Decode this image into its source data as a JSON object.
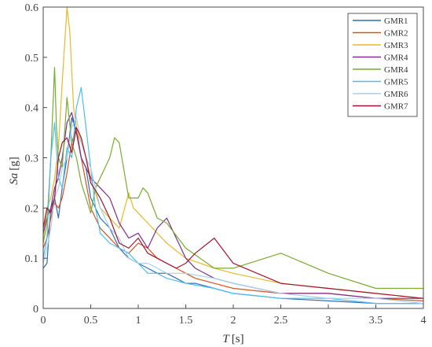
{
  "chart_data": {
    "type": "line",
    "xlabel_prefix": "T",
    "xlabel_unit": "[s]",
    "ylabel_prefix": "Sa",
    "ylabel_unit": "[g]",
    "xlim": [
      0,
      4
    ],
    "ylim": [
      0,
      0.6
    ],
    "xticks": [
      "0",
      "0.5",
      "1",
      "1.5",
      "2",
      "2.5",
      "3",
      "3.5",
      "4"
    ],
    "yticks": [
      "0",
      "0.1",
      "0.2",
      "0.3",
      "0.4",
      "0.5",
      "0.6"
    ],
    "legend_position": "top-right",
    "grid": false,
    "series": [
      {
        "name": "GMR1",
        "color": "#2f6fb3",
        "x": [
          0,
          0.04,
          0.08,
          0.12,
          0.16,
          0.2,
          0.25,
          0.3,
          0.35,
          0.4,
          0.45,
          0.5,
          0.6,
          0.7,
          0.8,
          0.9,
          1.0,
          1.1,
          1.2,
          1.3,
          1.4,
          1.5,
          1.6,
          1.8,
          2.0,
          2.5,
          3.0,
          3.5,
          4.0
        ],
        "y": [
          0.08,
          0.09,
          0.2,
          0.22,
          0.18,
          0.24,
          0.3,
          0.38,
          0.35,
          0.3,
          0.28,
          0.22,
          0.18,
          0.16,
          0.12,
          0.1,
          0.09,
          0.08,
          0.07,
          0.07,
          0.06,
          0.05,
          0.05,
          0.04,
          0.03,
          0.02,
          0.015,
          0.01,
          0.01
        ]
      },
      {
        "name": "GMR2",
        "color": "#d9531e",
        "x": [
          0,
          0.04,
          0.08,
          0.12,
          0.16,
          0.2,
          0.25,
          0.3,
          0.35,
          0.4,
          0.45,
          0.5,
          0.6,
          0.7,
          0.8,
          0.9,
          1.0,
          1.1,
          1.2,
          1.3,
          1.4,
          1.5,
          1.6,
          1.8,
          2.0,
          2.5,
          3.0,
          3.5,
          4.0
        ],
        "y": [
          0.12,
          0.14,
          0.18,
          0.21,
          0.2,
          0.22,
          0.27,
          0.33,
          0.36,
          0.3,
          0.25,
          0.2,
          0.16,
          0.14,
          0.12,
          0.11,
          0.13,
          0.12,
          0.1,
          0.09,
          0.08,
          0.07,
          0.06,
          0.05,
          0.04,
          0.03,
          0.03,
          0.02,
          0.015
        ]
      },
      {
        "name": "GMR3",
        "color": "#e9b82c",
        "x": [
          0,
          0.04,
          0.08,
          0.12,
          0.16,
          0.2,
          0.25,
          0.28,
          0.32,
          0.36,
          0.4,
          0.45,
          0.5,
          0.6,
          0.7,
          0.8,
          0.9,
          0.95,
          1.0,
          1.1,
          1.2,
          1.3,
          1.5,
          1.8,
          2.0,
          2.5,
          3.0,
          3.5,
          4.0
        ],
        "y": [
          0.14,
          0.2,
          0.22,
          0.26,
          0.32,
          0.45,
          0.6,
          0.55,
          0.4,
          0.35,
          0.33,
          0.3,
          0.26,
          0.2,
          0.18,
          0.16,
          0.23,
          0.2,
          0.19,
          0.17,
          0.15,
          0.13,
          0.1,
          0.08,
          0.07,
          0.05,
          0.04,
          0.03,
          0.02
        ]
      },
      {
        "name": "GMR4",
        "color": "#7b2f8e",
        "x": [
          0,
          0.04,
          0.08,
          0.12,
          0.16,
          0.2,
          0.25,
          0.3,
          0.35,
          0.4,
          0.45,
          0.5,
          0.6,
          0.7,
          0.8,
          0.9,
          1.0,
          1.1,
          1.2,
          1.3,
          1.4,
          1.5,
          1.6,
          1.8,
          2.0,
          2.5,
          3.0,
          3.5,
          4.0
        ],
        "y": [
          0.15,
          0.18,
          0.2,
          0.24,
          0.26,
          0.3,
          0.37,
          0.39,
          0.35,
          0.3,
          0.28,
          0.26,
          0.24,
          0.22,
          0.17,
          0.14,
          0.15,
          0.12,
          0.16,
          0.18,
          0.14,
          0.1,
          0.08,
          0.06,
          0.05,
          0.03,
          0.03,
          0.02,
          0.02
        ]
      },
      {
        "name": "GMR4",
        "color": "#77ac30",
        "x": [
          0,
          0.04,
          0.08,
          0.12,
          0.14,
          0.16,
          0.2,
          0.25,
          0.3,
          0.35,
          0.4,
          0.45,
          0.5,
          0.55,
          0.6,
          0.7,
          0.75,
          0.8,
          0.9,
          1.0,
          1.05,
          1.1,
          1.2,
          1.3,
          1.5,
          1.8,
          2.0,
          2.5,
          3.0,
          3.5,
          4.0
        ],
        "y": [
          0.13,
          0.17,
          0.3,
          0.48,
          0.36,
          0.3,
          0.28,
          0.42,
          0.33,
          0.3,
          0.25,
          0.22,
          0.19,
          0.24,
          0.26,
          0.3,
          0.34,
          0.33,
          0.22,
          0.22,
          0.24,
          0.23,
          0.18,
          0.17,
          0.12,
          0.08,
          0.08,
          0.11,
          0.07,
          0.04,
          0.04
        ]
      },
      {
        "name": "GMR5",
        "color": "#4dbeee",
        "x": [
          0,
          0.04,
          0.08,
          0.12,
          0.16,
          0.2,
          0.25,
          0.3,
          0.35,
          0.4,
          0.45,
          0.5,
          0.55,
          0.6,
          0.7,
          0.8,
          0.9,
          1.0,
          1.1,
          1.2,
          1.3,
          1.5,
          1.8,
          2.0,
          2.5,
          3.0,
          3.5,
          4.0
        ],
        "y": [
          0.1,
          0.14,
          0.3,
          0.37,
          0.26,
          0.24,
          0.32,
          0.3,
          0.4,
          0.44,
          0.36,
          0.28,
          0.2,
          0.15,
          0.13,
          0.12,
          0.11,
          0.09,
          0.07,
          0.07,
          0.06,
          0.05,
          0.04,
          0.03,
          0.02,
          0.02,
          0.01,
          0.01
        ]
      },
      {
        "name": "GMR6",
        "color": "#a2d2f0",
        "x": [
          0,
          0.04,
          0.08,
          0.12,
          0.16,
          0.2,
          0.25,
          0.3,
          0.35,
          0.4,
          0.45,
          0.5,
          0.6,
          0.7,
          0.8,
          0.9,
          1.0,
          1.1,
          1.2,
          1.3,
          1.5,
          1.8,
          2.0,
          2.5,
          3.0,
          3.5,
          4.0
        ],
        "y": [
          0.09,
          0.12,
          0.16,
          0.22,
          0.24,
          0.28,
          0.3,
          0.36,
          0.38,
          0.33,
          0.3,
          0.28,
          0.2,
          0.16,
          0.14,
          0.1,
          0.09,
          0.09,
          0.08,
          0.07,
          0.07,
          0.06,
          0.05,
          0.03,
          0.02,
          0.02,
          0.01
        ]
      },
      {
        "name": "GMR7",
        "color": "#a2142f",
        "x": [
          0,
          0.04,
          0.08,
          0.12,
          0.16,
          0.2,
          0.25,
          0.3,
          0.35,
          0.4,
          0.45,
          0.5,
          0.6,
          0.7,
          0.8,
          0.9,
          1.0,
          1.1,
          1.2,
          1.3,
          1.4,
          1.5,
          1.6,
          1.8,
          2.0,
          2.5,
          3.0,
          3.5,
          4.0
        ],
        "y": [
          0.16,
          0.2,
          0.19,
          0.22,
          0.3,
          0.33,
          0.34,
          0.31,
          0.36,
          0.34,
          0.3,
          0.25,
          0.22,
          0.18,
          0.13,
          0.12,
          0.14,
          0.11,
          0.1,
          0.09,
          0.08,
          0.09,
          0.11,
          0.14,
          0.09,
          0.05,
          0.04,
          0.03,
          0.02
        ]
      }
    ]
  }
}
